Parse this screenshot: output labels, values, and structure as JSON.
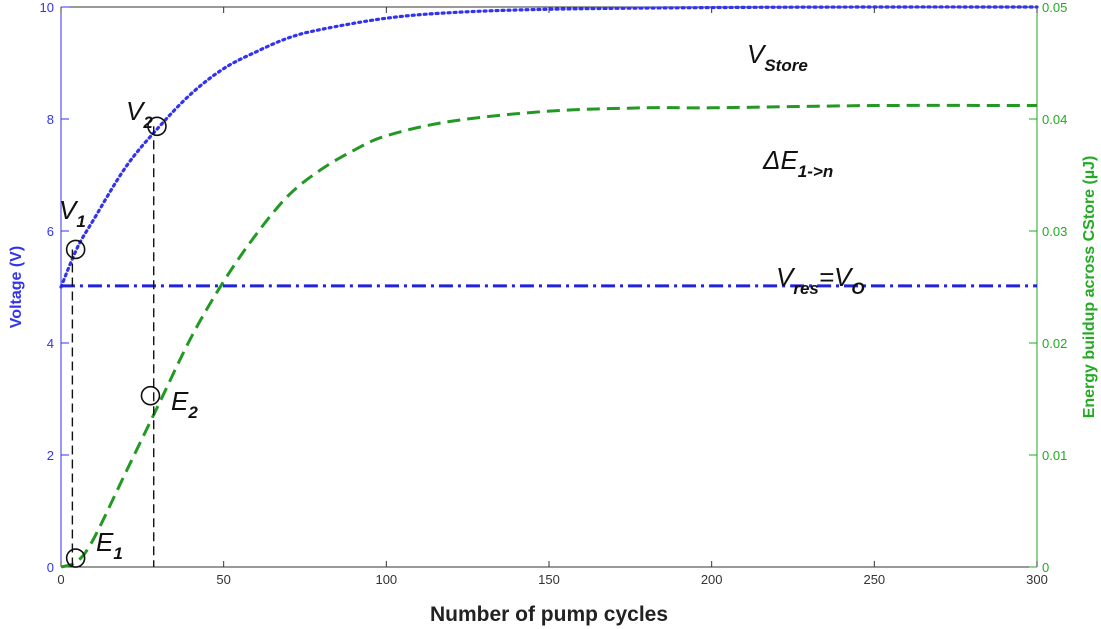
{
  "chart_data": {
    "type": "line",
    "xlabel": "Number of pump cycles",
    "ylabel_left": "Voltage (V)",
    "ylabel_right": "Energy buildup across CStore (µJ)",
    "xlim": [
      0,
      300
    ],
    "ylim_left": [
      0,
      10
    ],
    "ylim_right": [
      0,
      0.05
    ],
    "x_ticks": [
      "0",
      "50",
      "100",
      "150",
      "200",
      "250",
      "300"
    ],
    "y_left_ticks": [
      "0",
      "2",
      "4",
      "6",
      "8",
      "10"
    ],
    "y_right_ticks": [
      "0",
      "0.01",
      "0.02",
      "0.03",
      "0.04",
      "0.05"
    ],
    "grid": false,
    "series": [
      {
        "label_base": "V",
        "label_sub": "Store",
        "axis": "left",
        "style": "dotted",
        "color": "#3333ee",
        "x": [
          0,
          5,
          10,
          20,
          30,
          40,
          50,
          60,
          70,
          80,
          100,
          120,
          150,
          200,
          250,
          300
        ],
        "values": [
          5.0,
          5.7,
          6.2,
          7.15,
          7.85,
          8.45,
          8.9,
          9.2,
          9.45,
          9.6,
          9.8,
          9.9,
          9.96,
          9.99,
          10.0,
          10.0
        ]
      },
      {
        "label_base": "ΔE",
        "label_sub": "1->n",
        "axis": "right",
        "style": "dashed",
        "color": "#229922",
        "x": [
          0,
          5,
          10,
          20,
          30,
          40,
          50,
          60,
          70,
          80,
          90,
          100,
          120,
          150,
          180,
          200,
          250,
          300
        ],
        "values": [
          0.0,
          0.0005,
          0.0025,
          0.0085,
          0.0145,
          0.0205,
          0.0255,
          0.0297,
          0.0332,
          0.0355,
          0.0372,
          0.0385,
          0.0398,
          0.0407,
          0.041,
          0.041,
          0.0412,
          0.0412
        ]
      },
      {
        "label_base": "V",
        "label_sub": "res",
        "label_tail": "=V",
        "label_tail_sub": "O",
        "axis": "left",
        "style": "dashdot",
        "color": "#2222dd",
        "x": [
          0,
          300
        ],
        "values": [
          5.02,
          5.02
        ]
      }
    ],
    "markers": [
      {
        "label_base": "V",
        "label_sub": "1",
        "axis": "left",
        "x": 4.5,
        "y": 5.67
      },
      {
        "label_base": "V",
        "label_sub": "2",
        "axis": "left",
        "x": 29.5,
        "y": 7.87
      },
      {
        "label_base": "E",
        "label_sub": "1",
        "axis": "right",
        "x": 4.5,
        "y": 0.0008
      },
      {
        "label_base": "E",
        "label_sub": "2",
        "axis": "right",
        "x": 27.5,
        "y": 0.0153
      }
    ],
    "drop_lines": [
      {
        "x": 3.5,
        "y_from": 5.67,
        "axis": "left"
      },
      {
        "x": 28.5,
        "y_from": 7.87,
        "axis": "left"
      }
    ]
  }
}
